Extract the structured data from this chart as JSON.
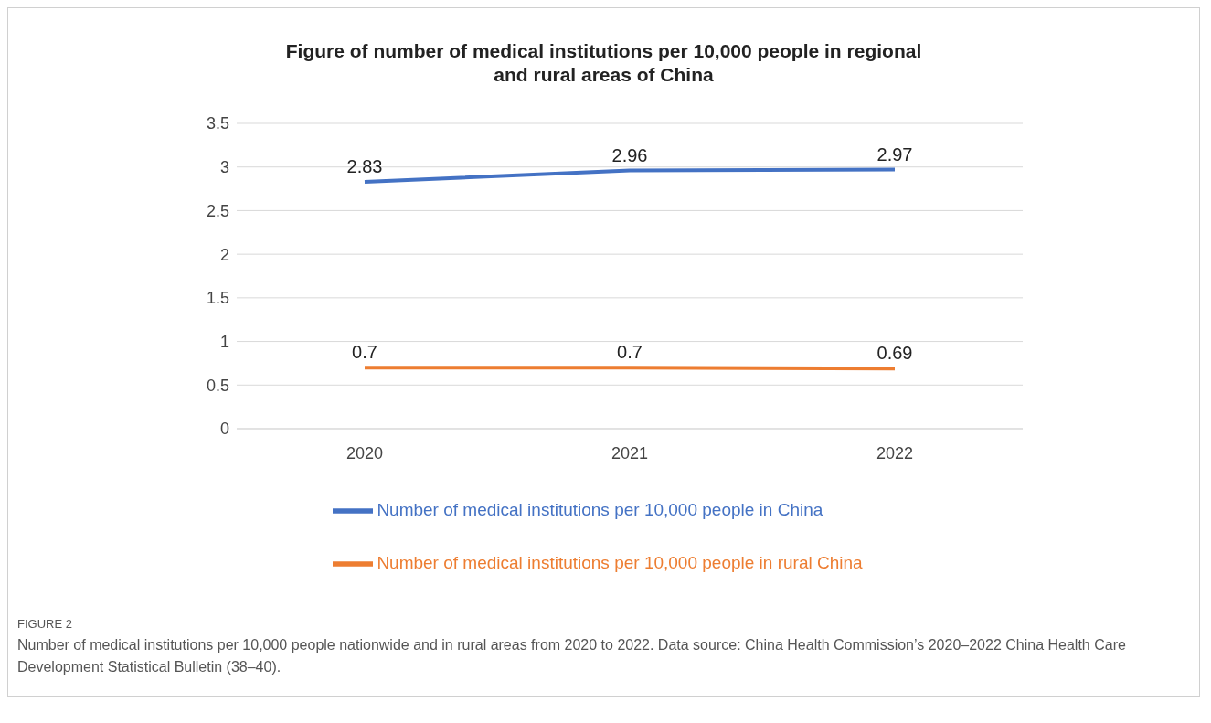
{
  "chart_data": {
    "type": "line",
    "title": "Figure of number of medical institutions per 10,000 people in regional and rural areas of China",
    "categories": [
      "2020",
      "2021",
      "2022"
    ],
    "series": [
      {
        "name": "Number of medical institutions per 10,000 people in China",
        "color": "#4472c4",
        "values": [
          2.83,
          2.96,
          2.97
        ]
      },
      {
        "name": "Number of medical institutions per 10,000 people in rural China",
        "color": "#ed7d31",
        "values": [
          0.7,
          0.7,
          0.69
        ]
      }
    ],
    "ylim": [
      0,
      3.5
    ],
    "yticks": [
      0,
      0.5,
      1,
      1.5,
      2,
      2.5,
      3,
      3.5
    ],
    "grid": "y",
    "legend": "bottom",
    "data_labels": true,
    "annotations": [
      "FIGURE 2",
      "Number of medical institutions per 10,000 people nationwide and in rural areas from 2020 to 2022. Data source: China Health Commission’s 2020–2022 China Health Care Development Statistical Bulletin (38–40)."
    ]
  }
}
